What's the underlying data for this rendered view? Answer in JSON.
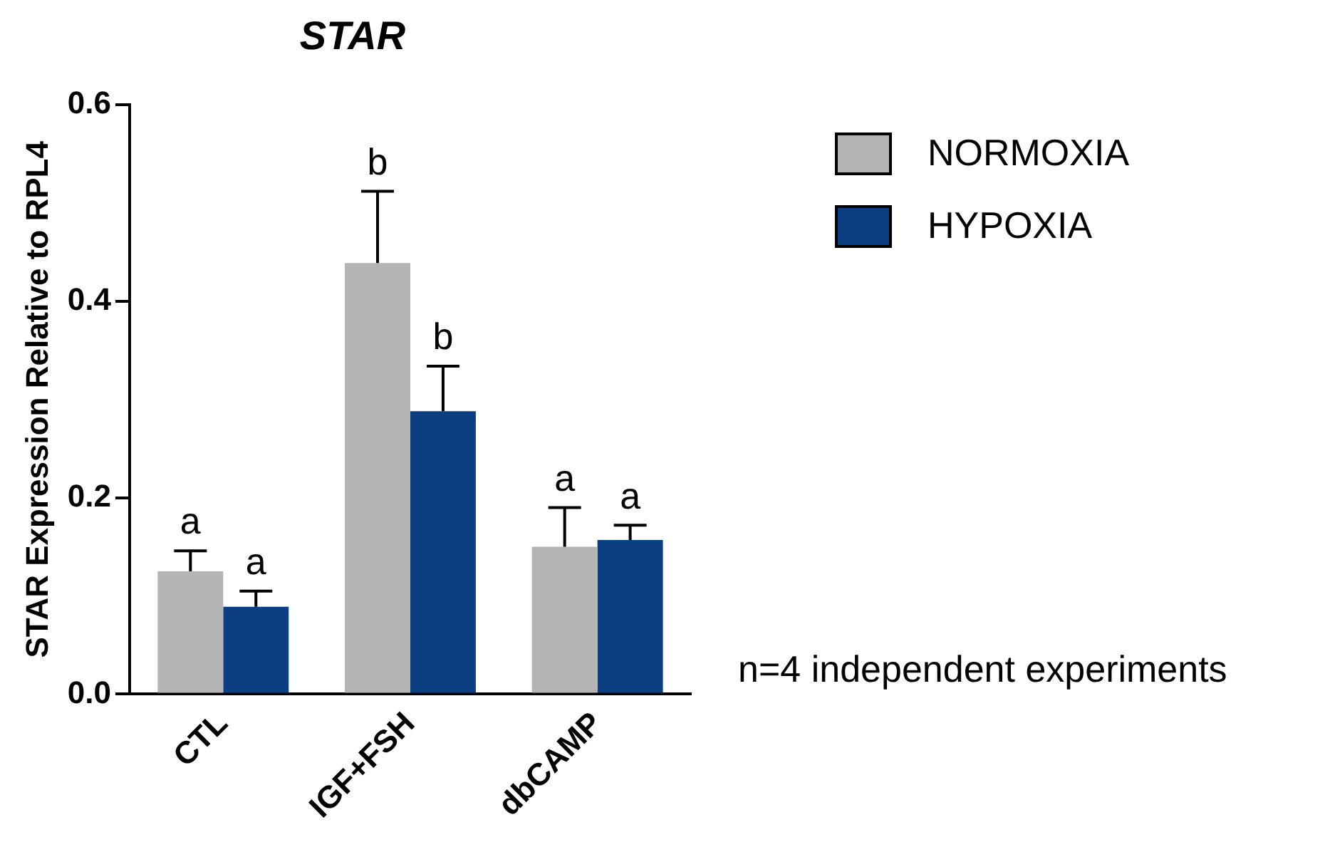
{
  "chart_data": {
    "type": "bar",
    "title": "STAR",
    "ylabel": "STAR Expression Relative to RPL4",
    "categories": [
      "CTL",
      "IGF+FSH",
      "dbCAMP"
    ],
    "series": [
      {
        "name": "NORMOXIA",
        "color": "#b4b4b4",
        "values": [
          0.125,
          0.439,
          0.15
        ],
        "errors": [
          [
            0.125,
            0.146
          ],
          [
            0.439,
            0.512
          ],
          [
            0.15,
            0.19
          ]
        ]
      },
      {
        "name": "HYPOXIA",
        "color": "#0b3f82",
        "values": [
          0.089,
          0.288,
          0.157
        ],
        "errors": [
          [
            0.089,
            0.105
          ],
          [
            0.288,
            0.334
          ],
          [
            0.157,
            0.172
          ]
        ]
      }
    ],
    "ylim": [
      0,
      0.6
    ],
    "yticks": [
      {
        "value": 0,
        "label": "0.0"
      },
      {
        "value": 0.2,
        "label": "0.2"
      },
      {
        "value": 0.4,
        "label": "0.4"
      },
      {
        "value": 0.6,
        "label": "0.6"
      }
    ],
    "grid": false,
    "legend": "top right",
    "annotations": [
      "a",
      "a",
      "b",
      "b",
      "a",
      "a",
      "n=4 independent experiments"
    ]
  }
}
